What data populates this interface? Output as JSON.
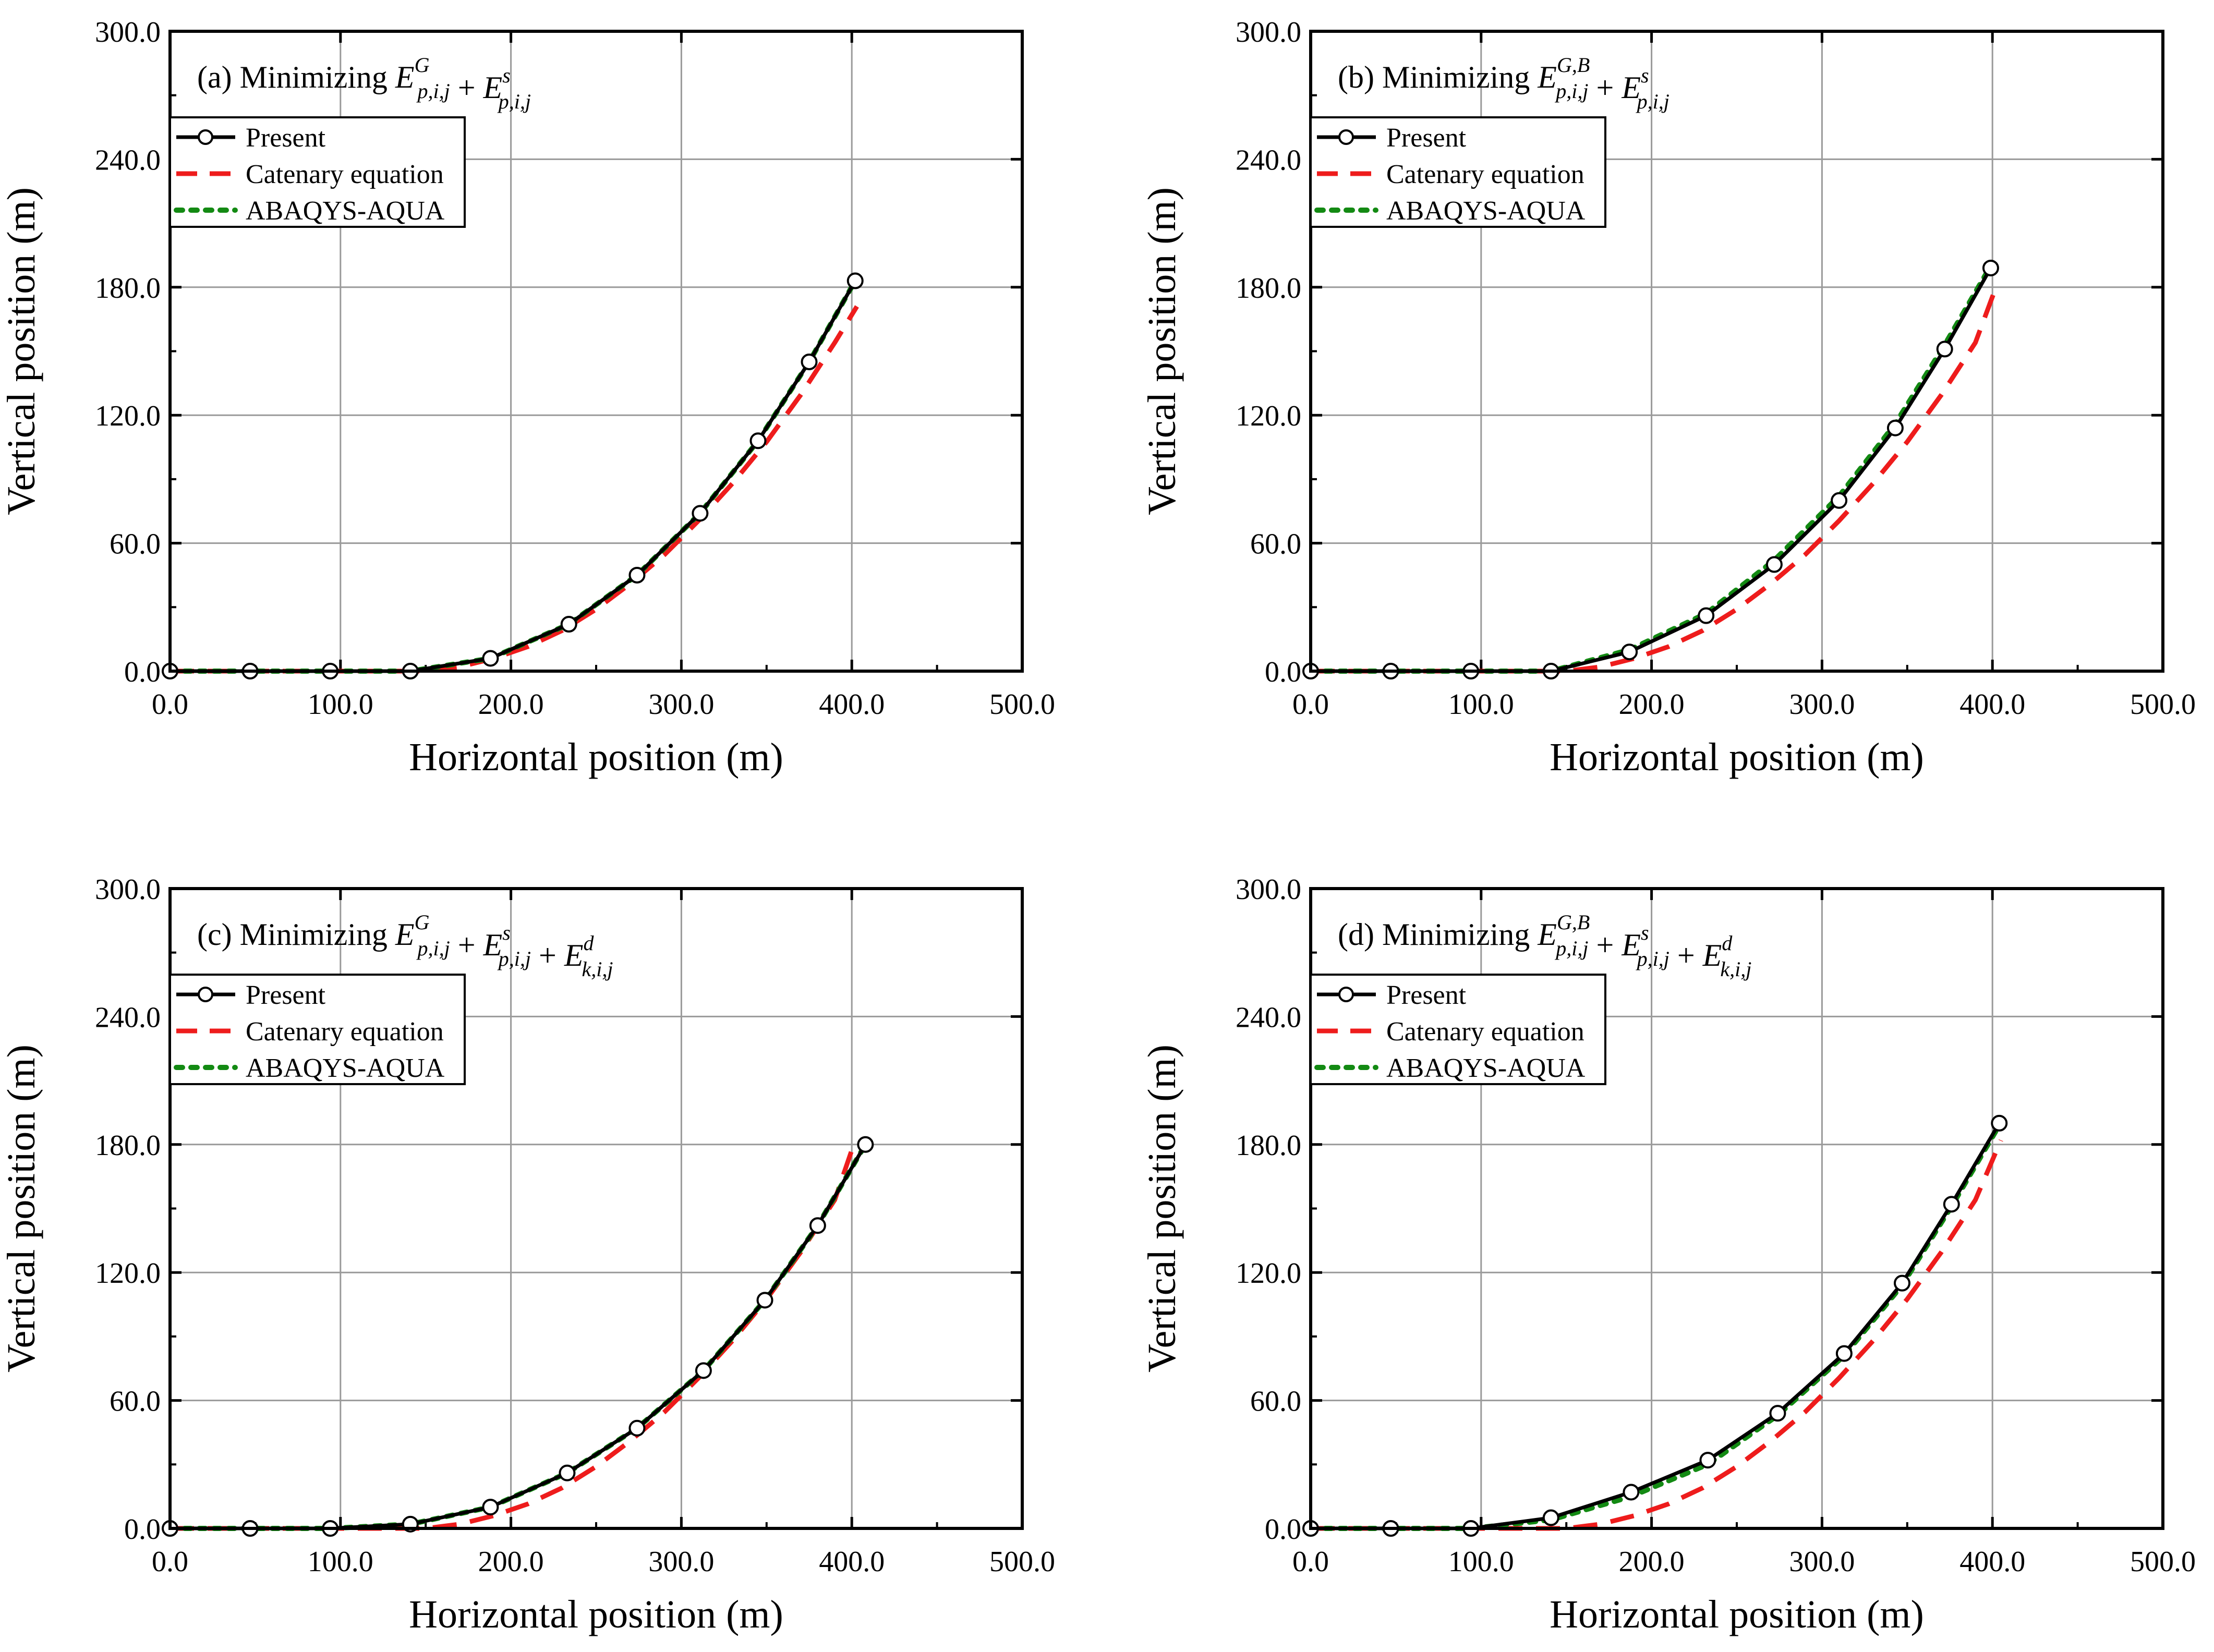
{
  "figure": {
    "layout": "2x2",
    "colors": {
      "present": "#000000",
      "catenary": "#ee1c1c",
      "abaqus": "#138a13",
      "grid": "#9a9a9a"
    }
  },
  "chart_data": [
    {
      "id": "a",
      "type": "line",
      "title": {
        "prefix": "(a) Minimizing ",
        "terms": [
          {
            "E": "E",
            "sup": "G",
            "sub": "p,i,j"
          },
          {
            "E": "E",
            "sup": "s",
            "sub": "p,i,j"
          }
        ]
      },
      "xlabel": "Horizontal position (m)",
      "ylabel": "Vertical position (m)",
      "xlim": [
        0,
        500
      ],
      "ylim": [
        0,
        300
      ],
      "xticks": [
        "0.0",
        "100.0",
        "200.0",
        "300.0",
        "400.0",
        "500.0"
      ],
      "yticks": [
        "0.0",
        "60.0",
        "120.0",
        "180.0",
        "240.0",
        "300.0"
      ],
      "grid": true,
      "legend": {
        "position": "top-left",
        "entries": [
          "Present",
          "Catenary equation",
          "ABAQYS-AQUA"
        ]
      },
      "series": [
        {
          "name": "Present",
          "style": "solid-markers",
          "x": [
            0,
            47,
            94,
            141,
            188,
            234,
            274,
            311,
            345,
            375,
            402
          ],
          "y": [
            0,
            0,
            0,
            0,
            6,
            22,
            45,
            74,
            108,
            145,
            183
          ]
        },
        {
          "name": "Catenary equation",
          "style": "dashed",
          "x": [
            0,
            50,
            100,
            150,
            170,
            190,
            210,
            230,
            250,
            270,
            290,
            310,
            330,
            350,
            370,
            390,
            403
          ],
          "y": [
            0,
            0,
            0,
            0,
            2,
            6,
            11.5,
            19,
            29,
            41,
            54.5,
            70.5,
            88,
            107.5,
            129.5,
            154,
            171
          ]
        },
        {
          "name": "ABAQYS-AQUA",
          "style": "dotted",
          "x": [
            0,
            47,
            94,
            141,
            188,
            234,
            274,
            311,
            345,
            375,
            402
          ],
          "y": [
            0,
            0,
            0,
            0,
            6,
            22,
            45,
            74,
            108,
            145,
            183
          ]
        }
      ]
    },
    {
      "id": "b",
      "type": "line",
      "title": {
        "prefix": "(b) Minimizing ",
        "terms": [
          {
            "E": "E",
            "sup": "G,B",
            "sub": "p,i,j"
          },
          {
            "E": "E",
            "sup": "s",
            "sub": "p,i,j"
          }
        ]
      },
      "xlabel": "Horizontal position (m)",
      "ylabel": "Vertical position (m)",
      "xlim": [
        0,
        500
      ],
      "ylim": [
        0,
        300
      ],
      "xticks": [
        "0.0",
        "100.0",
        "200.0",
        "300.0",
        "400.0",
        "500.0"
      ],
      "yticks": [
        "0.0",
        "60.0",
        "120.0",
        "180.0",
        "240.0",
        "300.0"
      ],
      "grid": true,
      "legend": {
        "position": "top-left",
        "entries": [
          "Present",
          "Catenary equation",
          "ABAQYS-AQUA"
        ]
      },
      "series": [
        {
          "name": "Present",
          "style": "solid-markers",
          "x": [
            0,
            47,
            94,
            141,
            187,
            232,
            272,
            310,
            343,
            372,
            399
          ],
          "y": [
            0,
            0,
            0,
            0,
            9,
            26,
            50,
            80,
            114,
            151,
            189
          ]
        },
        {
          "name": "Catenary equation",
          "style": "dashed",
          "x": [
            0,
            50,
            100,
            150,
            170,
            190,
            210,
            230,
            250,
            270,
            290,
            310,
            330,
            350,
            370,
            390,
            403
          ],
          "y": [
            0,
            0,
            0,
            0,
            2,
            6,
            11.5,
            19,
            29,
            41,
            54.5,
            70.5,
            88,
            107.5,
            129.5,
            154,
            182
          ]
        },
        {
          "name": "ABAQYS-AQUA",
          "style": "dotted",
          "x": [
            0,
            47,
            94,
            141,
            187,
            232,
            272,
            310,
            343,
            372,
            399
          ],
          "y": [
            0,
            0,
            0,
            0,
            10,
            27,
            52,
            82,
            116,
            153,
            190
          ]
        }
      ]
    },
    {
      "id": "c",
      "type": "line",
      "title": {
        "prefix": "(c) Minimizing ",
        "terms": [
          {
            "E": "E",
            "sup": "G",
            "sub": "p,i,j"
          },
          {
            "E": "E",
            "sup": "s",
            "sub": "p,i,j"
          },
          {
            "E": "E",
            "sup": "d",
            "sub": "k,i,j"
          }
        ]
      },
      "xlabel": "Horizontal position (m)",
      "ylabel": "Vertical position (m)",
      "xlim": [
        0,
        500
      ],
      "ylim": [
        0,
        300
      ],
      "xticks": [
        "0.0",
        "100.0",
        "200.0",
        "300.0",
        "400.0",
        "500.0"
      ],
      "yticks": [
        "0.0",
        "60.0",
        "120.0",
        "180.0",
        "240.0",
        "300.0"
      ],
      "grid": true,
      "legend": {
        "position": "top-left",
        "entries": [
          "Present",
          "Catenary equation",
          "ABAQYS-AQUA"
        ]
      },
      "series": [
        {
          "name": "Present",
          "style": "solid-markers",
          "x": [
            0,
            47,
            94,
            141,
            188,
            233,
            274,
            313,
            349,
            380,
            408
          ],
          "y": [
            0,
            0,
            0,
            2,
            10,
            26,
            47,
            74,
            107,
            142,
            180
          ]
        },
        {
          "name": "Catenary equation",
          "style": "dashed",
          "x": [
            0,
            50,
            100,
            150,
            170,
            190,
            210,
            230,
            250,
            270,
            290,
            310,
            330,
            350,
            370,
            390,
            402
          ],
          "y": [
            0,
            0,
            0,
            0,
            2,
            6,
            11.5,
            19,
            29,
            41,
            54.5,
            70.5,
            88,
            107.5,
            129.5,
            154,
            182
          ]
        },
        {
          "name": "ABAQYS-AQUA",
          "style": "dotted",
          "x": [
            0,
            47,
            94,
            141,
            188,
            233,
            274,
            313,
            349,
            380,
            408
          ],
          "y": [
            0,
            0,
            0,
            2,
            10,
            26,
            47,
            74,
            107,
            142,
            180
          ]
        }
      ]
    },
    {
      "id": "d",
      "type": "line",
      "title": {
        "prefix": "(d) Minimizing ",
        "terms": [
          {
            "E": "E",
            "sup": "G,B",
            "sub": "p,i,j"
          },
          {
            "E": "E",
            "sup": "s",
            "sub": "p,i,j"
          },
          {
            "E": "E",
            "sup": "d",
            "sub": "k,i,j"
          }
        ]
      },
      "xlabel": "Horizontal position (m)",
      "ylabel": "Vertical position (m)",
      "xlim": [
        0,
        500
      ],
      "ylim": [
        0,
        300
      ],
      "xticks": [
        "0.0",
        "100.0",
        "200.0",
        "300.0",
        "400.0",
        "500.0"
      ],
      "yticks": [
        "0.0",
        "60.0",
        "120.0",
        "180.0",
        "240.0",
        "300.0"
      ],
      "grid": true,
      "legend": {
        "position": "top-left",
        "entries": [
          "Present",
          "Catenary equation",
          "ABAQYS-AQUA"
        ]
      },
      "series": [
        {
          "name": "Present",
          "style": "solid-markers",
          "x": [
            0,
            47,
            94,
            141,
            188,
            233,
            274,
            313,
            347,
            376,
            404
          ],
          "y": [
            0,
            0,
            0,
            5,
            17,
            32,
            54,
            82,
            115,
            152,
            190
          ]
        },
        {
          "name": "Catenary equation",
          "style": "dashed",
          "x": [
            0,
            50,
            100,
            150,
            170,
            190,
            210,
            230,
            250,
            270,
            290,
            310,
            330,
            350,
            370,
            390,
            405
          ],
          "y": [
            0,
            0,
            0,
            0,
            2,
            6,
            11.5,
            19,
            29,
            41,
            54.5,
            70.5,
            88,
            107.5,
            129.5,
            154,
            182
          ]
        },
        {
          "name": "ABAQYS-AQUA",
          "style": "dotted",
          "x": [
            0,
            47,
            94,
            141,
            188,
            233,
            274,
            313,
            347,
            376,
            404
          ],
          "y": [
            0,
            0,
            0,
            4,
            15,
            30,
            53,
            81,
            114,
            151,
            189
          ]
        }
      ]
    }
  ]
}
